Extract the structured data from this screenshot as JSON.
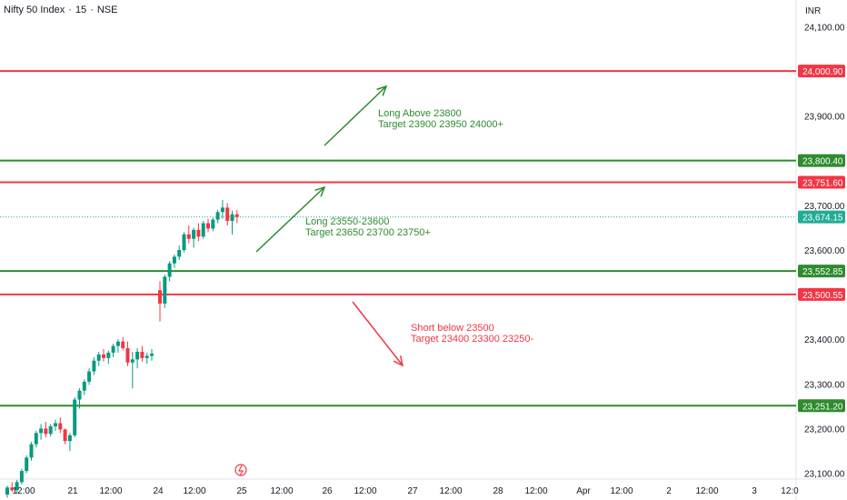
{
  "header": {
    "symbol": "Nifty 50 Index",
    "interval": "15",
    "exchange": "NSE",
    "sep": "·",
    "currency": "INR"
  },
  "colors": {
    "up": "#089981",
    "down": "#f23645",
    "green_line": "#2e8b2e",
    "red_line": "#f23645",
    "text": "#131722",
    "axis_text": "#131722",
    "border": "#e0e3eb",
    "grid": "#f0f3fa",
    "last_price": "#22ab94"
  },
  "chart_data": {
    "type": "candlestick",
    "title": "Nifty 50 Index · 15 · NSE",
    "ylim": [
      23040,
      24160
    ],
    "y_ticks": [
      {
        "value": 24100,
        "label": "24,100.00"
      },
      {
        "value": 23900,
        "label": "23,900.00"
      },
      {
        "value": 23700,
        "label": "23,700.00"
      },
      {
        "value": 23600,
        "label": "23,600.00"
      },
      {
        "value": 23400,
        "label": "23,400.00"
      },
      {
        "value": 23300,
        "label": "23,300.00"
      },
      {
        "value": 23200,
        "label": "23,200.00"
      },
      {
        "value": 23100,
        "label": "23,100.00"
      }
    ],
    "x_ticks": [
      "12:00",
      "21",
      "12:00",
      "24",
      "12:00",
      "25",
      "12:00",
      "26",
      "12:00",
      "27",
      "12:00",
      "28",
      "12:00",
      "Apr",
      "12:00",
      "2",
      "12:00",
      "3",
      "12:0"
    ],
    "horizontal_levels": [
      {
        "value": 24000.9,
        "label": "24,000.90",
        "color": "red"
      },
      {
        "value": 23800.4,
        "label": "23,800.40",
        "color": "green"
      },
      {
        "value": 23751.6,
        "label": "23,751.60",
        "color": "red"
      },
      {
        "value": 23552.85,
        "label": "23,552.85",
        "color": "green"
      },
      {
        "value": 23500.55,
        "label": "23,500.55",
        "color": "red"
      },
      {
        "value": 23251.2,
        "label": "23,251.20",
        "color": "green"
      }
    ],
    "last_price": {
      "value": 23674.15,
      "label": "23,674.15"
    },
    "annotations": [
      {
        "color": "green",
        "lines": [
          "Long Above 23800",
          "Target 23900 23950 24000+"
        ]
      },
      {
        "color": "green",
        "lines": [
          "Long 23550-23600",
          "Target 23650 23700 23750+"
        ]
      },
      {
        "color": "red",
        "lines": [
          "Short below 23500",
          "Target 23400 23300 23250-"
        ]
      }
    ],
    "candles": [
      [
        23052,
        23072,
        23045,
        23068
      ],
      [
        23068,
        23080,
        23058,
        23062
      ],
      [
        23062,
        23085,
        23055,
        23080
      ],
      [
        23080,
        23110,
        23075,
        23105
      ],
      [
        23105,
        23140,
        23100,
        23135
      ],
      [
        23135,
        23170,
        23128,
        23165
      ],
      [
        23165,
        23195,
        23158,
        23190
      ],
      [
        23190,
        23210,
        23175,
        23200
      ],
      [
        23200,
        23215,
        23180,
        23188
      ],
      [
        23188,
        23210,
        23182,
        23205
      ],
      [
        23205,
        23220,
        23195,
        23212
      ],
      [
        23212,
        23225,
        23190,
        23198
      ],
      [
        23198,
        23200,
        23165,
        23172
      ],
      [
        23172,
        23190,
        23150,
        23185
      ],
      [
        23185,
        23270,
        23180,
        23265
      ],
      [
        23265,
        23290,
        23245,
        23285
      ],
      [
        23285,
        23310,
        23275,
        23305
      ],
      [
        23305,
        23335,
        23298,
        23328
      ],
      [
        23328,
        23360,
        23320,
        23352
      ],
      [
        23352,
        23372,
        23340,
        23366
      ],
      [
        23366,
        23378,
        23350,
        23358
      ],
      [
        23358,
        23375,
        23345,
        23370
      ],
      [
        23370,
        23390,
        23360,
        23385
      ],
      [
        23385,
        23400,
        23370,
        23395
      ],
      [
        23395,
        23405,
        23375,
        23380
      ],
      [
        23380,
        23395,
        23340,
        23348
      ],
      [
        23348,
        23372,
        23290,
        23355
      ],
      [
        23355,
        23380,
        23335,
        23372
      ],
      [
        23372,
        23385,
        23350,
        23358
      ],
      [
        23358,
        23370,
        23345,
        23363
      ],
      [
        23363,
        23378,
        23352,
        23368
      ],
      [
        23510,
        23530,
        23440,
        23480
      ],
      [
        23480,
        23545,
        23470,
        23540
      ],
      [
        23540,
        23575,
        23530,
        23570
      ],
      [
        23570,
        23590,
        23560,
        23585
      ],
      [
        23585,
        23610,
        23578,
        23600
      ],
      [
        23600,
        23640,
        23595,
        23635
      ],
      [
        23635,
        23655,
        23615,
        23625
      ],
      [
        23625,
        23650,
        23605,
        23645
      ],
      [
        23645,
        23660,
        23620,
        23630
      ],
      [
        23630,
        23665,
        23625,
        23660
      ],
      [
        23660,
        23670,
        23640,
        23648
      ],
      [
        23648,
        23672,
        23642,
        23668
      ],
      [
        23668,
        23690,
        23660,
        23685
      ],
      [
        23685,
        23712,
        23670,
        23695
      ],
      [
        23695,
        23705,
        23655,
        23665
      ],
      [
        23665,
        23688,
        23635,
        23680
      ],
      [
        23680,
        23690,
        23660,
        23674
      ]
    ]
  }
}
